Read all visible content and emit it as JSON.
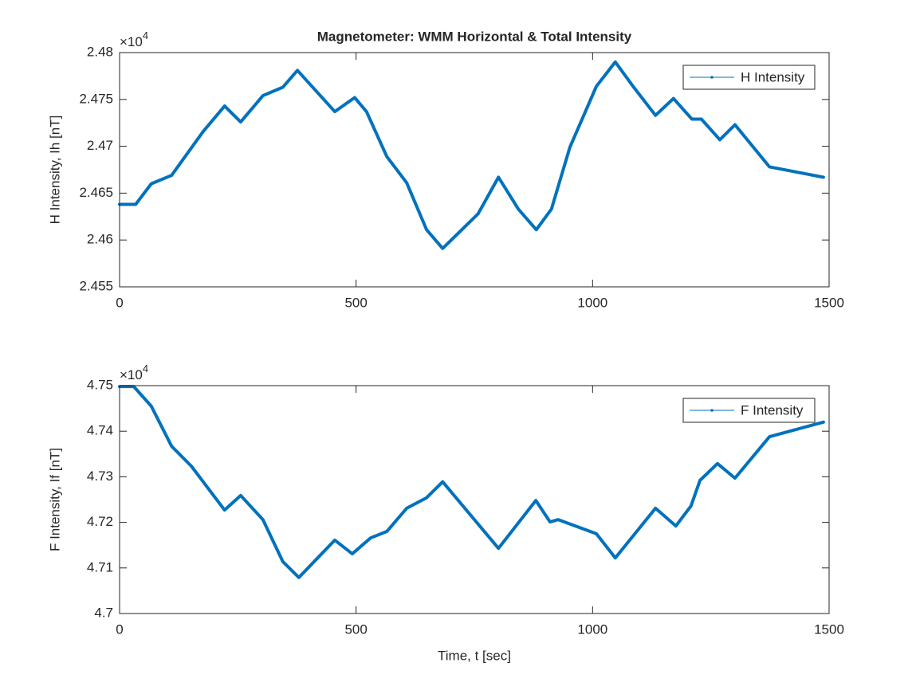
{
  "chart_data": [
    {
      "type": "line",
      "title": "Magnetometer: WMM Horizontal & Total Intensity",
      "ylabel": "H Intensity, Ih [nT]",
      "y_exponent_base": "×10",
      "y_exponent": "4",
      "x": [
        0,
        34,
        67,
        110,
        177,
        222,
        256,
        303,
        345,
        376,
        455,
        497,
        522,
        565,
        607,
        649,
        683,
        758,
        801,
        843,
        881,
        913,
        952,
        1008,
        1048,
        1087,
        1133,
        1171,
        1210,
        1230,
        1269,
        1301,
        1374,
        1488
      ],
      "series": [
        {
          "name": "H Intensity",
          "color": "#0072bd",
          "values": [
            24638,
            24638,
            24660,
            24669,
            24716,
            24743,
            24726,
            24754,
            24763,
            24781,
            24737,
            24752,
            24737,
            24689,
            24661,
            24611,
            24591,
            24628,
            24667,
            24633,
            24611,
            24633,
            24699,
            24764,
            24790,
            24763,
            24733,
            24751,
            24729,
            24729,
            24707,
            24723,
            24678,
            24667
          ]
        }
      ],
      "xlim": [
        0,
        1500
      ],
      "xticks": [
        0,
        500,
        1000,
        1500
      ],
      "ylim": [
        24550,
        24800
      ],
      "yticks": [
        {
          "value": 24550,
          "label": "2.455"
        },
        {
          "value": 24600,
          "label": "2.46"
        },
        {
          "value": 24650,
          "label": "2.465"
        },
        {
          "value": 24700,
          "label": "2.47"
        },
        {
          "value": 24750,
          "label": "2.475"
        },
        {
          "value": 24800,
          "label": "2.48"
        }
      ],
      "legend": "northeast",
      "grid": false
    },
    {
      "type": "line",
      "xlabel": "Time, t [sec]",
      "ylabel": "F Intensity, If [nT]",
      "y_exponent_base": "×10",
      "y_exponent": "4",
      "x": [
        0,
        30,
        67,
        110,
        152,
        222,
        256,
        303,
        345,
        379,
        455,
        492,
        531,
        565,
        607,
        649,
        683,
        801,
        880,
        910,
        927,
        1008,
        1048,
        1133,
        1176,
        1208,
        1227,
        1264,
        1301,
        1374,
        1488
      ],
      "series": [
        {
          "name": "F Intensity",
          "color": "#0072bd",
          "values": [
            47498,
            47498,
            47455,
            47367,
            47323,
            47227,
            47259,
            47206,
            47114,
            47079,
            47161,
            47131,
            47166,
            47180,
            47231,
            47254,
            47289,
            47143,
            47248,
            47201,
            47206,
            47175,
            47122,
            47231,
            47192,
            47236,
            47292,
            47329,
            47297,
            47388,
            47420
          ]
        }
      ],
      "xlim": [
        0,
        1500
      ],
      "xticks": [
        0,
        500,
        1000,
        1500
      ],
      "ylim": [
        47000,
        47500
      ],
      "yticks": [
        {
          "value": 47000,
          "label": "4.7"
        },
        {
          "value": 47100,
          "label": "4.71"
        },
        {
          "value": 47200,
          "label": "4.72"
        },
        {
          "value": 47300,
          "label": "4.73"
        },
        {
          "value": 47400,
          "label": "4.74"
        },
        {
          "value": 47500,
          "label": "4.75"
        }
      ],
      "legend": "northeast",
      "grid": false
    }
  ]
}
